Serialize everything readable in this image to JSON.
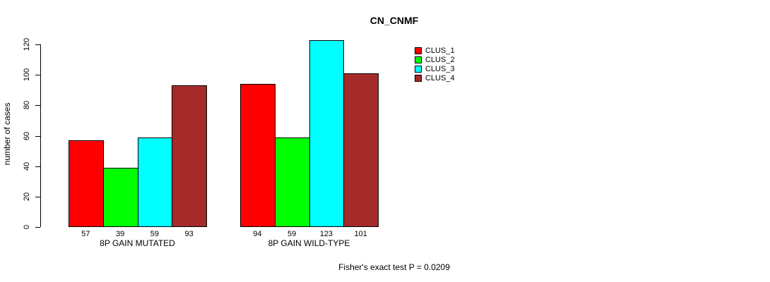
{
  "chart_data": {
    "type": "bar",
    "title": "CN_CNMF",
    "xlabel": "",
    "ylabel": "number of cases",
    "ylim": [
      0,
      120
    ],
    "yticks": [
      0,
      20,
      40,
      60,
      80,
      100,
      120
    ],
    "grid": false,
    "legend_position": "top-right",
    "categories": [
      "8P GAIN MUTATED",
      "8P GAIN WILD-TYPE"
    ],
    "series": [
      {
        "name": "CLUS_1",
        "color": "#ff0000",
        "values": [
          57,
          94
        ]
      },
      {
        "name": "CLUS_2",
        "color": "#00ff00",
        "values": [
          39,
          59
        ]
      },
      {
        "name": "CLUS_3",
        "color": "#00ffff",
        "values": [
          59,
          123
        ]
      },
      {
        "name": "CLUS_4",
        "color": "#a52a2a",
        "values": [
          93,
          101
        ]
      }
    ],
    "bar_value_labels": [
      [
        57,
        39,
        59,
        93
      ],
      [
        94,
        59,
        123,
        101
      ]
    ],
    "annotation": "Fisher's exact test P = 0.0209"
  }
}
